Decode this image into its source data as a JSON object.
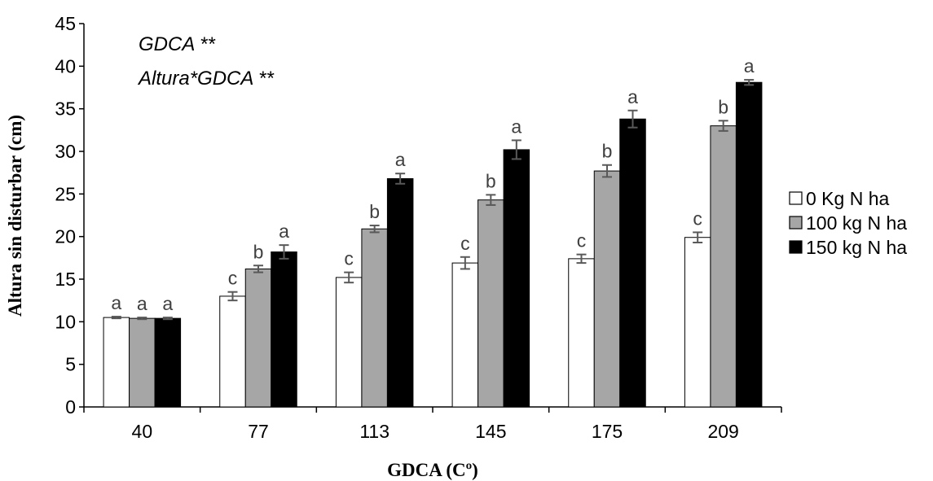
{
  "chart_data": {
    "type": "bar",
    "title": "",
    "xlabel": "GDCA (Cº)",
    "ylabel": "Altura sin disturbar (cm)",
    "ylim": [
      0,
      45
    ],
    "yticks": [
      0,
      5,
      10,
      15,
      20,
      25,
      30,
      35,
      40,
      45
    ],
    "categories": [
      "40",
      "77",
      "113",
      "145",
      "175",
      "209"
    ],
    "grid": false,
    "legend_position": "right",
    "annotations": [
      "GDCA **",
      "Altura*GDCA **"
    ],
    "series": [
      {
        "name": "0 Kg N ha",
        "color": "#ffffff",
        "values": [
          10.5,
          13.0,
          15.2,
          16.9,
          17.4,
          19.9
        ],
        "errors": [
          0.1,
          0.5,
          0.6,
          0.7,
          0.5,
          0.6
        ],
        "letters": [
          "a",
          "c",
          "c",
          "c",
          "c",
          "c"
        ]
      },
      {
        "name": "100 kg N ha",
        "color": "#a6a6a6",
        "values": [
          10.4,
          16.2,
          20.9,
          24.3,
          27.7,
          33.0
        ],
        "errors": [
          0.1,
          0.4,
          0.4,
          0.6,
          0.7,
          0.6
        ],
        "letters": [
          "a",
          "b",
          "b",
          "b",
          "b",
          "b"
        ]
      },
      {
        "name": "150 kg N ha",
        "color": "#000000",
        "values": [
          10.4,
          18.2,
          26.8,
          30.2,
          33.8,
          38.1
        ],
        "errors": [
          0.1,
          0.8,
          0.6,
          1.1,
          1.0,
          0.3
        ],
        "letters": [
          "a",
          "a",
          "a",
          "a",
          "a",
          "a"
        ]
      }
    ]
  }
}
